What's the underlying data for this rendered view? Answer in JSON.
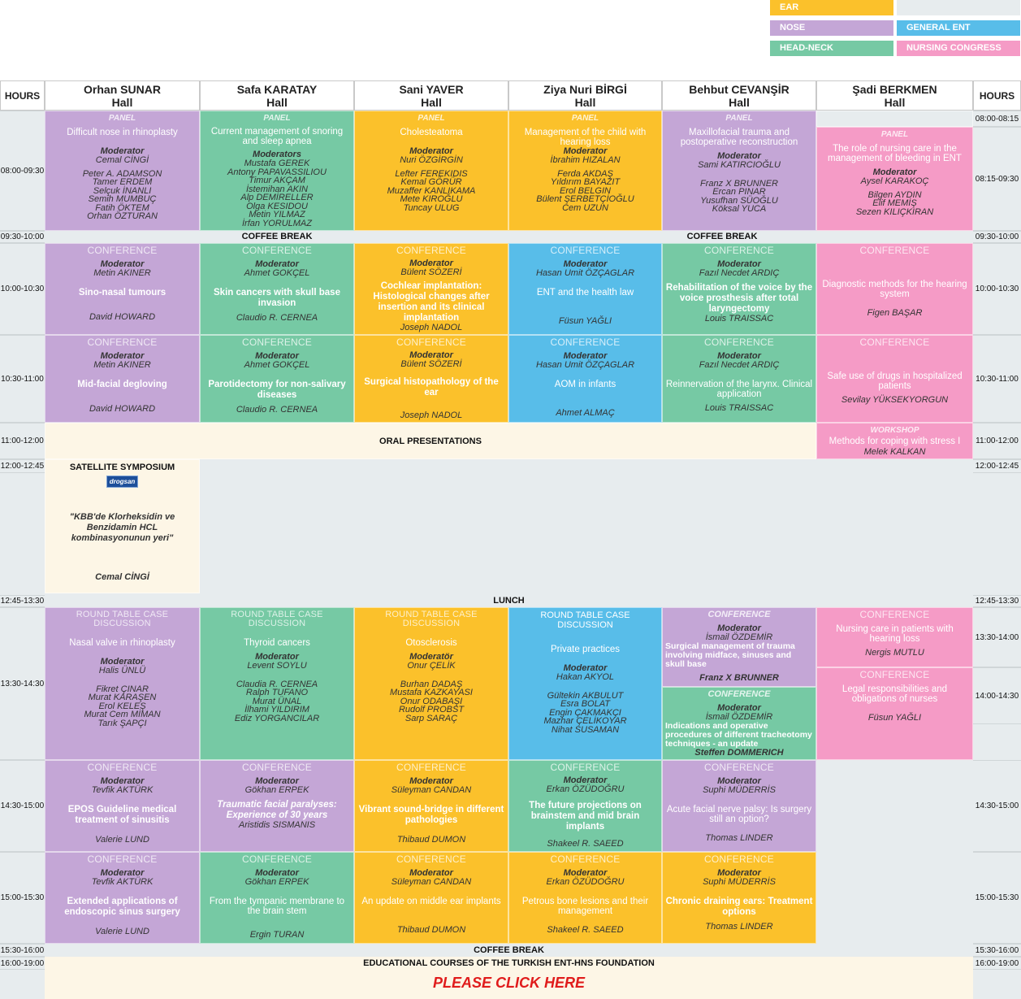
{
  "legend": {
    "ear": "EAR",
    "nose": "NOSE",
    "general_ent": "GENERAL ENT",
    "head_neck": "HEAD-NECK",
    "nursing": "NURSING CONGRESS",
    "colors": {
      "ear": "#fbc12b",
      "nose": "#c4a6d6",
      "general_ent": "#58bde9",
      "head_neck": "#76c9a4",
      "nursing": "#f59bc6"
    }
  },
  "header": {
    "hours": "HOURS",
    "hall_word": "Hall",
    "halls": [
      "Orhan SUNAR",
      "Safa KARATAY",
      "Sani YAVER",
      "Ziya Nuri BİRGİ",
      "Behbut CEVANŞİR",
      "Şadi BERKMEN"
    ]
  },
  "times": {
    "t0800": "08:00-09:30",
    "t0930": "09:30-10:00",
    "t1000": "10:00-10:30",
    "t1030": "10:30-11:00",
    "t1100": "11:00-12:00",
    "t1200": "12:00-12:45",
    "t1245": "12:45-13:30",
    "t1330": "13:30-14:30",
    "t1430": "14:30-15:00",
    "t1500": "15:00-15:30",
    "t1530": "15:30-16:00",
    "t1600": "16:00-19:00",
    "r0800": "08:00-08:15",
    "r0815": "08:15-09:30",
    "r1330": "13:30-14:00",
    "r1400": "14:00-14:30"
  },
  "bars": {
    "coffee": "COFFEE BREAK",
    "oral": "ORAL PRESENTATIONS",
    "lunch": "LUNCH",
    "educational": "EDUCATIONAL COURSES OF THE TURKISH ENT-HNS FOUNDATION",
    "click": "PLEASE CLICK HERE"
  },
  "labels": {
    "panel": "PANEL",
    "panel_lower": "Panel",
    "conference": "CONFERENCE",
    "round_table": "ROUND TABLE CASE DISCUSSION",
    "workshop": "WORKSHOP",
    "moderator": "Moderator",
    "moderators": "Moderators",
    "moderator_tr": "Moderatör",
    "satellite": "SATELLITE SYMPOSIUM"
  },
  "s0800": {
    "c1": {
      "topic": "Difficult nose in rhinoplasty",
      "mod": "Cemal CİNGİ",
      "panelists": [
        "Peter A. ADAMSON",
        "Tamer ERDEM",
        "Selçuk İNANLI",
        "Semih MUMBUÇ",
        "Fatih ÖKTEM",
        "Orhan ÖZTURAN"
      ]
    },
    "c2": {
      "topic": "Current management of snoring and sleep apnea",
      "mods": [
        "Mustafa GEREK",
        "Antony PAPAVASSILIOU",
        "Timur AKÇAM",
        "İstemihan AKIN",
        "Alp DEMİRELLER",
        "Olga KESIDOU",
        "Metin YILMAZ",
        "İrfan YORULMAZ"
      ]
    },
    "c3": {
      "topic": "Cholesteatoma",
      "mod": "Nuri ÖZGİRGİN",
      "panelists": [
        "Lefter FEREKIDIS",
        "Kemal GÖRÜR",
        "Muzaffer KANLIKAMA",
        "Mete KIROĞLU",
        "Tuncay ULUG"
      ]
    },
    "c4": {
      "topic": "Management of the child with hearing loss",
      "mod": "İbrahim HIZALAN",
      "panelists": [
        "Ferda AKDAŞ",
        "Yıldırım BAYAZIT",
        "Erol BELGIN",
        "Bülent ŞERBETÇİOĞLU",
        "Cem UZUN"
      ]
    },
    "c5": {
      "topic": "Maxillofacial trauma and postoperative reconstruction",
      "mod": "Sami KATIRCIOĞLU",
      "panelists": [
        "Franz X BRUNNER",
        "Ercan PINAR",
        "Yusufhan SÜOĞLU",
        "Köksal YUCA"
      ]
    },
    "c6": {
      "topic": "The role of nursing care in the management of bleeding in ENT",
      "mod": "Aysel KARAKOÇ",
      "panelists": [
        "Bilgen AYDIN",
        "Elif MEMİŞ",
        "Sezen KILIÇKIRAN"
      ]
    }
  },
  "s1000": [
    {
      "mod": "Metin AKINER",
      "topic": "Sino-nasal tumours",
      "speaker": "David HOWARD"
    },
    {
      "mod": "Ahmet GOKÇEL",
      "topic": "Skin cancers with skull base invasion",
      "speaker": "Claudio R. CERNEA"
    },
    {
      "mod": "Bülent SÖZERİ",
      "topic": "Cochlear implantation: Histological changes after insertion and its clinical implantation",
      "speaker": "Joseph NADOL"
    },
    {
      "mod": "Hasan Umit ÖZÇAGLAR",
      "topic": "ENT and the health law",
      "speaker": "Füsun YAĞLI"
    },
    {
      "mod": "Fazıl Necdet ARDIÇ",
      "topic": "Rehabilitation of the voice by the voice prosthesis after total laryngectomy",
      "speaker": "Louis TRAISSAC"
    },
    {
      "topic": "Diagnostic methods for the hearing system",
      "speaker": "Figen BAŞAR"
    }
  ],
  "s1030": [
    {
      "mod": "Metin AKINER",
      "topic": "Mid-facial degloving",
      "speaker": "David HOWARD"
    },
    {
      "mod": "Ahmet GOKÇEL",
      "topic": "Parotidectomy for non-salivary diseases",
      "speaker": "Claudio R. CERNEA"
    },
    {
      "mod": "Bülent SÖZERİ",
      "topic": "Surgical histopathology of the ear",
      "speaker": "Joseph NADOL"
    },
    {
      "mod": "Hasan Umit ÖZÇAGLAR",
      "topic": "AOM in infants",
      "speaker": "Ahmet ALMAÇ"
    },
    {
      "mod": "Fazıl Necdet ARDIÇ",
      "topic": "Reinnervation of the larynx. Clinical application",
      "speaker": "Louis TRAISSAC"
    },
    {
      "topic": "Safe use of drugs in hospitalized patients",
      "speaker": "Sevilay YÜKSEKYORGUN"
    }
  ],
  "workshop1100": {
    "topic": "Methods for coping with stress I",
    "speaker": "Melek KALKAN"
  },
  "satellite": {
    "logo": "drogsan",
    "topic": "\"KBB'de Klorheksidin ve Benzidamin HCL kombinasyonunun yeri\"",
    "speaker": "Cemal CİNGİ"
  },
  "s1330": {
    "c1": {
      "topic": "Nasal valve in rhinoplasty",
      "mod": "Halis ÜNLÜ",
      "panelists": [
        "Fikret ÇINAR",
        "Murat KARAŞEN",
        "Erol KELEŞ",
        "Murat Cem MİMAN",
        "Tarık ŞAPÇI"
      ]
    },
    "c2": {
      "topic": "Thyroid cancers",
      "mod": "Levent SOYLU",
      "panelists": [
        "Claudia R. CERNEA",
        "Ralph TUFANO",
        "Murat ÜNAL",
        "İlhami YILDIRIM",
        "Ediz YORGANCILAR"
      ]
    },
    "c3": {
      "topic": "Otosclerosis",
      "mod": "Onur ÇELİK",
      "panelists": [
        "Burhan DADAŞ",
        "Mustafa KAZKAYASI",
        "Onur ODABAŞI",
        "Rudolf PROBST",
        "Sarp SARAÇ"
      ]
    },
    "c4": {
      "topic": "Private practices",
      "mod": "Hakan AKYOL",
      "panelists": [
        "Gültekin AKBULUT",
        "Esra BOLAT",
        "Engin ÇAKMAKÇI",
        "Mazhar ÇELİKOYAR",
        "Nihat SUSAMAN"
      ]
    },
    "c5a": {
      "mod": "İsmail ÖZDEMİR",
      "topic": "Surgical management of trauma involving midface, sinuses and skull base",
      "speaker": "Franz X BRUNNER"
    },
    "c5b": {
      "mod": "İsmail ÖZDEMİR",
      "topic": "Indications and operative procedures of different tracheotomy techniques - an update",
      "speaker": "Steffen DOMMERICH"
    },
    "c6a": {
      "topic": "Nursing care in patients with hearing loss",
      "speaker": "Nergis MUTLU"
    },
    "c6b": {
      "topic": "Legal responsibilities and obligations of nurses",
      "speaker": "Füsun YAĞLI"
    }
  },
  "s1430": [
    {
      "mod": "Tevfik AKTÜRK",
      "topic": "EPOS Guideline medical treatment of sinusitis",
      "speaker": "Valerie LUND"
    },
    {
      "mod": "Gökhan ERPEK",
      "topic": "Traumatic facial paralyses: Experience of 30 years",
      "speaker": "Aristidis SISMANIS"
    },
    {
      "mod": "Süleyman CANDAN",
      "topic": "Vibrant sound-bridge in different pathologies",
      "speaker": "Thibaud DUMON"
    },
    {
      "mod": "Erkan ÖZÜDOĞRU",
      "topic": "The future projections on brainstem and mid brain implants",
      "speaker": "Shakeel R. SAEED"
    },
    {
      "mod": "Suphi MÜDERRİS",
      "topic": "Acute facial nerve palsy: Is surgery still an option?",
      "speaker": "Thomas LINDER"
    }
  ],
  "s1500": [
    {
      "mod": "Tevfik AKTÜRK",
      "topic": "Extended applications of endoscopic sinus surgery",
      "speaker": "Valerie LUND"
    },
    {
      "mod": "Gökhan ERPEK",
      "topic": "From the tympanic membrane to the brain stem",
      "speaker": "Ergin TURAN"
    },
    {
      "mod": "Süleyman CANDAN",
      "topic": "An update on middle ear implants",
      "speaker": "Thibaud DUMON"
    },
    {
      "mod": "Erkan ÖZÜDOĞRU",
      "topic": "Petrous bone lesions and their management",
      "speaker": "Shakeel R. SAEED"
    },
    {
      "mod": "Suphi MÜDERRİS",
      "topic": "Chronic draining ears: Treatment options",
      "speaker": "Thomas LINDER"
    }
  ]
}
